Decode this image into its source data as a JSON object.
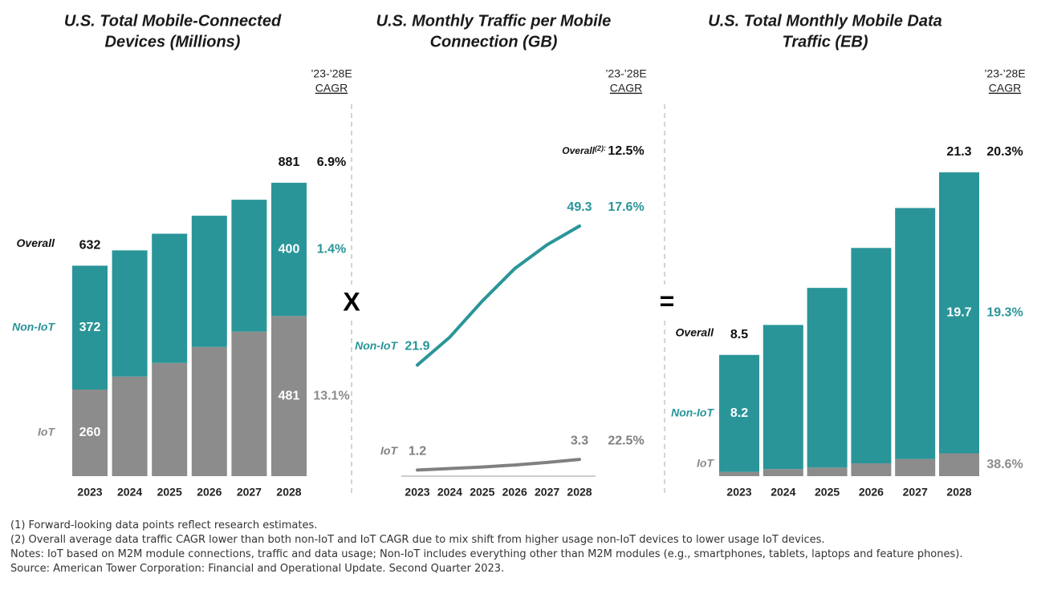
{
  "chart_data": [
    {
      "type": "stacked_bar",
      "title": [
        "U.S. Total Mobile-Connected",
        "Devices (Millions)"
      ],
      "cagr_header": [
        "’23-’28E",
        "CAGR"
      ],
      "categories": [
        "2023",
        "2024",
        "2025",
        "2026",
        "2027",
        "2028"
      ],
      "series": [
        {
          "name": "IoT",
          "color": "#8c8c8c",
          "values": [
            260,
            299,
            340,
            388,
            434,
            481
          ],
          "value_labels": [
            "260",
            null,
            null,
            null,
            null,
            "481"
          ],
          "cagr": "13.1%"
        },
        {
          "name": "Non-IoT",
          "color": "#2a9599",
          "values": [
            372,
            379,
            388,
            394,
            396,
            400
          ],
          "value_labels": [
            "372",
            null,
            null,
            null,
            null,
            "400"
          ],
          "cagr": "1.4%"
        }
      ],
      "overall": {
        "name": "Overall",
        "values": [
          632,
          null,
          null,
          null,
          null,
          881
        ],
        "cagr": "6.9%"
      }
    },
    {
      "type": "line",
      "title": [
        "U.S. Monthly Traffic per Mobile",
        "Connection (GB)"
      ],
      "cagr_header": [
        "’23-’28E",
        "CAGR"
      ],
      "categories": [
        "2023",
        "2024",
        "2025",
        "2026",
        "2027",
        "2028"
      ],
      "series": [
        {
          "name": "Non-IoT",
          "color": "#2a9599",
          "values": [
            21.9,
            27.4,
            34.5,
            40.9,
            45.6,
            49.3
          ],
          "value_labels": [
            "21.9",
            null,
            null,
            null,
            null,
            "49.3"
          ],
          "cagr": "17.6%"
        },
        {
          "name": "IoT",
          "color": "#808080",
          "values": [
            1.2,
            1.5,
            1.8,
            2.2,
            2.7,
            3.3
          ],
          "value_labels": [
            "1.2",
            null,
            null,
            null,
            null,
            "3.3"
          ],
          "cagr": "22.5%"
        }
      ],
      "overall": {
        "name": "Overall",
        "note": "(2):",
        "cagr": "12.5%"
      }
    },
    {
      "type": "stacked_bar",
      "title": [
        "U.S. Total Monthly Mobile Data",
        "Traffic (EB)"
      ],
      "cagr_header": [
        "’23-’28E",
        "CAGR"
      ],
      "categories": [
        "2023",
        "2024",
        "2025",
        "2026",
        "2027",
        "2028"
      ],
      "series": [
        {
          "name": "IoT",
          "color": "#8c8c8c",
          "values": [
            0.3,
            0.5,
            0.6,
            0.9,
            1.2,
            1.6
          ],
          "value_labels": [
            "0.3",
            null,
            null,
            null,
            null,
            "1.6"
          ],
          "cagr": "38.6%"
        },
        {
          "name": "Non-IoT",
          "color": "#2a9599",
          "values": [
            8.2,
            10.1,
            12.6,
            15.1,
            17.6,
            19.7
          ],
          "value_labels": [
            "8.2",
            null,
            null,
            null,
            null,
            "19.7"
          ],
          "cagr": "19.3%"
        }
      ],
      "overall": {
        "name": "Overall",
        "values": [
          8.5,
          null,
          null,
          null,
          null,
          21.3
        ],
        "cagr": "20.3%"
      }
    }
  ],
  "operators": [
    "X",
    "="
  ],
  "footnotes": [
    "(1) Forward-looking data points reflect research estimates.",
    "(2) Overall average data traffic CAGR lower than both non-IoT and IoT CAGR due to mix shift from higher usage non-IoT devices to lower usage IoT devices.",
    "Notes: IoT based on M2M module connections, traffic and data usage; Non-IoT includes everything other than M2M modules (e.g., smartphones, tablets, laptops and feature phones).",
    "Source: American Tower Corporation: Financial and Operational Update. Second Quarter 2023."
  ]
}
